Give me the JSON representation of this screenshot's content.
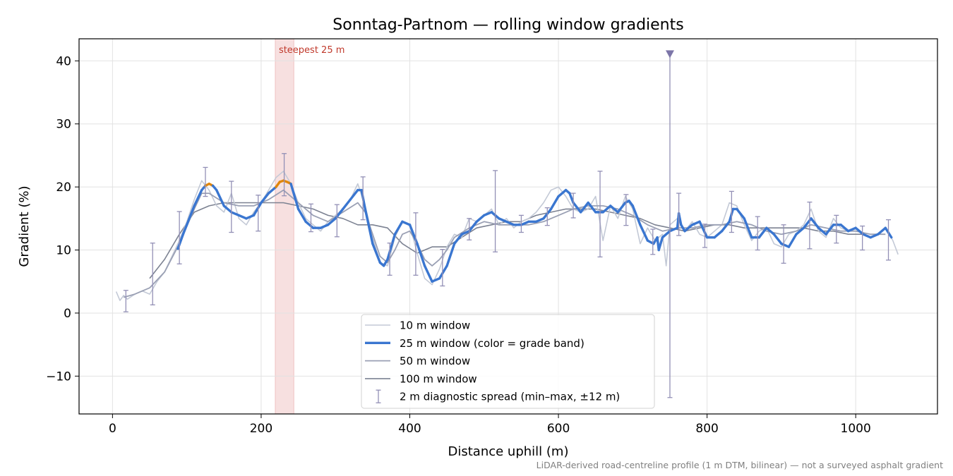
{
  "chart_data": {
    "type": "line",
    "title": "Sonntag-Partnom — rolling window gradients",
    "xlabel": "Distance uphill (m)",
    "ylabel": "Gradient (%)",
    "xlim": [
      -45,
      1110
    ],
    "ylim": [
      -16,
      43.5
    ],
    "xticks": [
      0,
      200,
      400,
      600,
      800,
      1000
    ],
    "yticks": [
      -10,
      0,
      10,
      20,
      30,
      40
    ],
    "grid": true,
    "legend_position": "lower center",
    "footnote": "LiDAR-derived road-centreline profile (1 m DTM, bilinear) — not a surveyed asphalt gradient",
    "annotations": [
      {
        "text": "steepest 25 m",
        "x_start": 219,
        "x_end": 244,
        "color": "#c0392b"
      }
    ],
    "marker_spike": {
      "x": 750,
      "y_min": -13.4,
      "y_max": 41
    },
    "series": [
      {
        "name": "10 m window",
        "color": "#c3c9d6",
        "x": [
          5,
          10,
          15,
          20,
          30,
          40,
          50,
          60,
          70,
          80,
          90,
          100,
          110,
          120,
          130,
          140,
          150,
          160,
          170,
          180,
          190,
          200,
          210,
          220,
          230,
          240,
          250,
          260,
          270,
          280,
          290,
          300,
          310,
          320,
          330,
          340,
          350,
          360,
          370,
          380,
          390,
          400,
          410,
          420,
          430,
          440,
          450,
          460,
          470,
          480,
          490,
          500,
          510,
          520,
          530,
          540,
          550,
          560,
          570,
          580,
          590,
          600,
          610,
          620,
          630,
          640,
          650,
          660,
          670,
          680,
          690,
          700,
          710,
          720,
          730,
          740,
          745,
          750,
          760,
          770,
          780,
          790,
          800,
          810,
          820,
          830,
          840,
          850,
          860,
          870,
          880,
          890,
          900,
          910,
          920,
          930,
          940,
          950,
          960,
          970,
          980,
          990,
          1000,
          1010,
          1020,
          1030,
          1040,
          1050,
          1057
        ],
        "values": [
          3.4,
          2.0,
          2.8,
          2.2,
          3.0,
          3.5,
          3.0,
          5.0,
          6.5,
          9.0,
          11.5,
          14.5,
          18.0,
          21.0,
          19.5,
          17.0,
          16.0,
          19.0,
          15.0,
          14.0,
          16.0,
          17.5,
          19.5,
          21.5,
          22.5,
          20.5,
          17.5,
          15.0,
          14.0,
          13.0,
          14.5,
          15.5,
          16.5,
          18.0,
          20.5,
          17.0,
          12.0,
          8.0,
          7.5,
          12.0,
          14.5,
          14.0,
          9.5,
          5.5,
          4.5,
          7.0,
          10.5,
          12.5,
          12.0,
          15.0,
          14.5,
          15.5,
          16.5,
          14.0,
          15.0,
          13.5,
          14.5,
          15.0,
          16.0,
          17.5,
          19.5,
          20.0,
          18.5,
          16.5,
          16.0,
          16.5,
          18.5,
          11.5,
          17.0,
          15.0,
          18.5,
          16.5,
          11.0,
          13.5,
          11.5,
          12.5,
          7.5,
          14.0,
          15.0,
          13.0,
          14.5,
          12.5,
          12.0,
          13.0,
          14.0,
          17.5,
          17.0,
          14.0,
          11.5,
          13.0,
          13.5,
          11.0,
          10.5,
          12.5,
          13.0,
          14.0,
          16.5,
          13.0,
          12.0,
          15.0,
          13.5,
          13.0,
          13.5,
          12.5,
          12.0,
          12.5,
          13.5,
          11.5,
          9.3
        ]
      },
      {
        "name": "25 m window (color = grade band)",
        "color": "#3a76d0",
        "highlight_color": "#e0860b",
        "highlight_threshold": 20,
        "x": [
          88,
          95,
          100,
          110,
          120,
          125,
          130,
          135,
          140,
          150,
          160,
          170,
          180,
          190,
          200,
          210,
          220,
          225,
          230,
          235,
          240,
          245,
          250,
          260,
          270,
          280,
          290,
          300,
          310,
          320,
          330,
          335,
          340,
          350,
          360,
          365,
          370,
          380,
          390,
          400,
          410,
          420,
          430,
          440,
          450,
          460,
          470,
          480,
          490,
          500,
          510,
          515,
          520,
          530,
          540,
          550,
          560,
          570,
          580,
          590,
          600,
          610,
          615,
          620,
          630,
          640,
          650,
          660,
          670,
          680,
          690,
          695,
          700,
          710,
          720,
          728,
          733,
          735,
          740,
          750,
          760,
          762,
          765,
          770,
          780,
          790,
          800,
          810,
          820,
          830,
          835,
          840,
          850,
          860,
          870,
          880,
          890,
          900,
          910,
          920,
          930,
          940,
          950,
          960,
          970,
          980,
          990,
          1000,
          1010,
          1020,
          1030,
          1040,
          1048
        ],
        "values": [
          10.2,
          12.5,
          14.0,
          17.0,
          19.5,
          20.2,
          20.5,
          20.2,
          19.5,
          17.0,
          16.0,
          15.5,
          15.0,
          15.5,
          17.5,
          19.0,
          20.0,
          20.8,
          21.0,
          20.8,
          20.5,
          18.5,
          16.5,
          14.5,
          13.5,
          13.5,
          14.0,
          15.0,
          16.5,
          18.0,
          19.5,
          19.5,
          16.5,
          11.0,
          8.0,
          7.5,
          8.5,
          12.5,
          14.5,
          14.0,
          11.0,
          7.5,
          5.0,
          5.5,
          7.5,
          11.0,
          12.5,
          13.0,
          14.5,
          15.5,
          16.0,
          15.5,
          15.0,
          14.5,
          14.0,
          14.0,
          14.5,
          14.5,
          15.0,
          16.5,
          18.5,
          19.5,
          19.0,
          17.5,
          16.0,
          17.5,
          16.0,
          16.0,
          17.0,
          16.0,
          17.5,
          17.8,
          17.0,
          14.0,
          11.5,
          11.0,
          12.0,
          10.0,
          12.0,
          13.0,
          13.5,
          15.8,
          14.0,
          13.0,
          14.0,
          14.5,
          12.0,
          12.0,
          13.0,
          14.5,
          16.5,
          16.5,
          15.0,
          12.0,
          12.0,
          13.5,
          12.5,
          11.0,
          10.5,
          12.5,
          13.5,
          15.0,
          13.5,
          12.5,
          14.0,
          14.0,
          13.0,
          13.5,
          12.5,
          12.0,
          12.5,
          13.5,
          12.0
        ]
      },
      {
        "name": "50 m window",
        "color": "#9aa0b4",
        "x": [
          15,
          30,
          50,
          70,
          90,
          110,
          120,
          130,
          150,
          170,
          190,
          210,
          230,
          250,
          270,
          290,
          310,
          330,
          340,
          350,
          360,
          370,
          380,
          390,
          400,
          410,
          420,
          430,
          440,
          450,
          460,
          480,
          500,
          520,
          540,
          560,
          580,
          600,
          620,
          640,
          660,
          680,
          700,
          720,
          740,
          760,
          780,
          800,
          820,
          840,
          860,
          880,
          900,
          920,
          940,
          960,
          980,
          1000,
          1020,
          1040
        ],
        "values": [
          2.5,
          3.0,
          4.0,
          6.5,
          11.0,
          16.5,
          19.0,
          19.0,
          17.5,
          17.0,
          17.0,
          18.0,
          19.5,
          17.5,
          15.5,
          14.5,
          16.0,
          17.5,
          16.0,
          12.5,
          9.0,
          8.0,
          10.0,
          12.5,
          13.0,
          11.0,
          8.5,
          7.5,
          8.5,
          10.0,
          12.0,
          13.5,
          14.5,
          14.0,
          14.0,
          14.0,
          14.5,
          15.5,
          16.5,
          17.0,
          17.0,
          16.5,
          15.5,
          14.0,
          13.0,
          13.5,
          13.5,
          14.0,
          14.0,
          14.5,
          14.0,
          13.0,
          12.5,
          13.0,
          14.0,
          13.5,
          13.0,
          13.0,
          12.5,
          12.5
        ]
      },
      {
        "name": "100 m window",
        "color": "#7c8292",
        "x": [
          50,
          70,
          90,
          110,
          130,
          150,
          170,
          190,
          210,
          230,
          250,
          270,
          290,
          310,
          330,
          350,
          370,
          390,
          410,
          430,
          450,
          470,
          490,
          510,
          530,
          550,
          570,
          590,
          610,
          630,
          650,
          670,
          690,
          710,
          730,
          750,
          770,
          790,
          810,
          830,
          850,
          870,
          890,
          910,
          930,
          950,
          970,
          990,
          1010
        ],
        "values": [
          5.5,
          8.5,
          12.5,
          16.0,
          17.0,
          17.5,
          17.5,
          17.5,
          17.5,
          17.5,
          17.0,
          16.5,
          15.5,
          15.0,
          14.0,
          14.0,
          13.5,
          11.0,
          9.5,
          10.5,
          10.5,
          12.0,
          13.5,
          14.0,
          14.5,
          14.5,
          15.5,
          16.0,
          16.5,
          16.5,
          16.5,
          16.0,
          15.5,
          15.0,
          14.0,
          13.5,
          13.0,
          13.5,
          14.0,
          14.0,
          13.5,
          13.5,
          13.5,
          13.5,
          13.5,
          13.0,
          13.0,
          12.5,
          12.5
        ]
      },
      {
        "name": "2 m diagnostic spread (min–max, ±12 m)",
        "color": "#9390b6",
        "type": "errorbar",
        "points": [
          {
            "x": 18,
            "low": 0.2,
            "high": 3.6
          },
          {
            "x": 54,
            "low": 1.3,
            "high": 11.1
          },
          {
            "x": 90,
            "low": 7.8,
            "high": 16.1
          },
          {
            "x": 125,
            "low": 18.5,
            "high": 23.1
          },
          {
            "x": 160,
            "low": 12.8,
            "high": 20.9
          },
          {
            "x": 196,
            "low": 13.0,
            "high": 18.7
          },
          {
            "x": 231,
            "low": 18.6,
            "high": 25.3
          },
          {
            "x": 267,
            "low": 12.9,
            "high": 17.3
          },
          {
            "x": 302,
            "low": 12.1,
            "high": 17.2
          },
          {
            "x": 337,
            "low": 14.8,
            "high": 21.6
          },
          {
            "x": 373,
            "low": 6.0,
            "high": 11.1
          },
          {
            "x": 408,
            "low": 6.0,
            "high": 15.9
          },
          {
            "x": 444,
            "low": 4.3,
            "high": 10.1
          },
          {
            "x": 480,
            "low": 11.6,
            "high": 15.0
          },
          {
            "x": 515,
            "low": 9.7,
            "high": 22.6
          },
          {
            "x": 550,
            "low": 12.8,
            "high": 15.5
          },
          {
            "x": 585,
            "low": 13.9,
            "high": 16.7
          },
          {
            "x": 620,
            "low": 15.1,
            "high": 19.0
          },
          {
            "x": 656,
            "low": 8.9,
            "high": 22.5
          },
          {
            "x": 691,
            "low": 13.9,
            "high": 18.8
          },
          {
            "x": 727,
            "low": 9.3,
            "high": 13.3
          },
          {
            "x": 762,
            "low": 12.3,
            "high": 19.0
          },
          {
            "x": 797,
            "low": 10.4,
            "high": 14.1
          },
          {
            "x": 833,
            "low": 12.8,
            "high": 19.3
          },
          {
            "x": 868,
            "low": 10.0,
            "high": 15.3
          },
          {
            "x": 903,
            "low": 7.9,
            "high": 14.0
          },
          {
            "x": 938,
            "low": 10.2,
            "high": 17.6
          },
          {
            "x": 974,
            "low": 11.1,
            "high": 15.5
          },
          {
            "x": 1009,
            "low": 10.0,
            "high": 13.8
          },
          {
            "x": 1044,
            "low": 8.4,
            "high": 14.8
          }
        ]
      }
    ]
  }
}
